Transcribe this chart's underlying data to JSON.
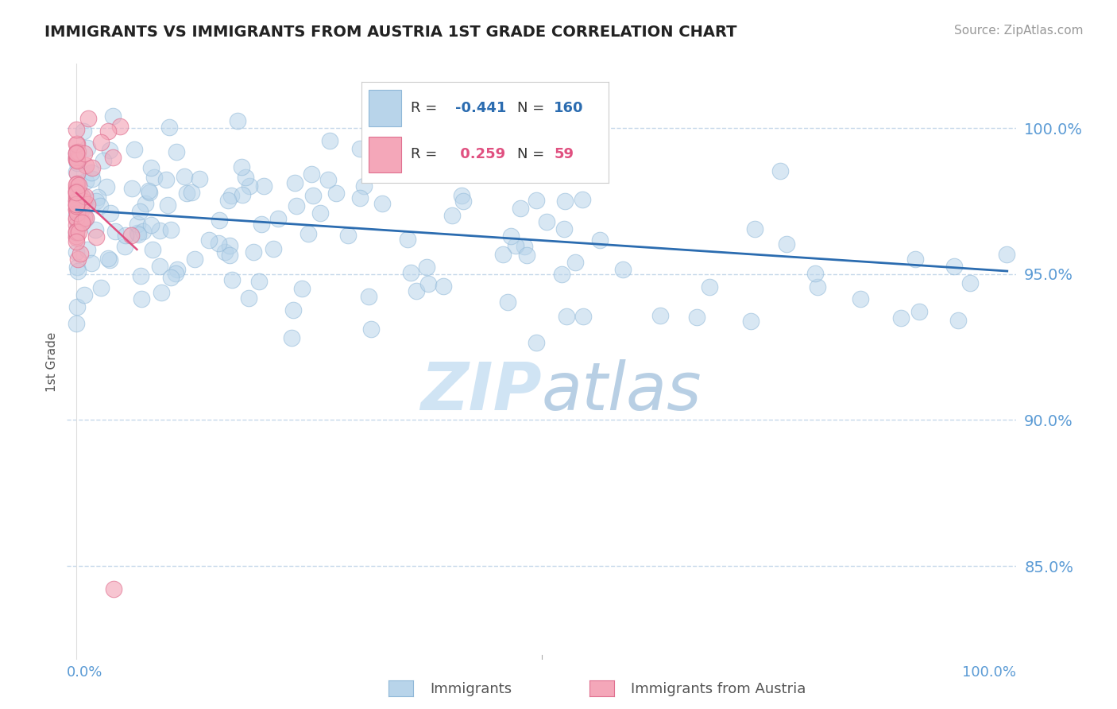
{
  "title": "IMMIGRANTS VS IMMIGRANTS FROM AUSTRIA 1ST GRADE CORRELATION CHART",
  "source": "Source: ZipAtlas.com",
  "ylabel": "1st Grade",
  "legend": {
    "blue_r": "-0.441",
    "blue_n": "160",
    "pink_r": "0.259",
    "pink_n": "59"
  },
  "blue_color": "#b8d4ea",
  "blue_edge_color": "#90b8d8",
  "blue_line_color": "#2b6cb0",
  "pink_color": "#f4a7b9",
  "pink_edge_color": "#e07090",
  "pink_line_color": "#e05080",
  "axis_color": "#5b9bd5",
  "grid_color": "#c0d4e8",
  "watermark_color": "#d0e4f4",
  "ytick_vals": [
    0.85,
    0.9,
    0.95,
    1.0
  ],
  "ylim": [
    0.818,
    1.022
  ],
  "xlim": [
    -0.01,
    1.01
  ],
  "n_blue": 160,
  "n_pink": 59
}
